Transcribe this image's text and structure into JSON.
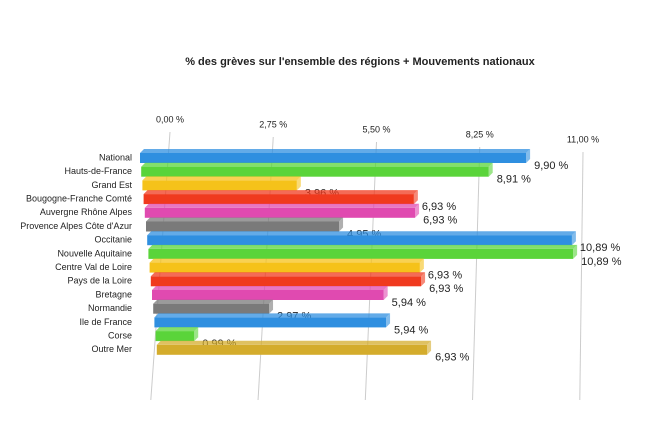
{
  "chart_data": {
    "type": "bar",
    "orientation": "horizontal",
    "title": "% des grèves sur l'ensemble des régions + Mouvements nationaux",
    "categories": [
      "National",
      "Hauts-de-France",
      "Grand Est",
      "Bougogne-Franche Comté",
      "Auvergne Rhône Alpes",
      "Provence Alpes Côte d'Azur",
      "Occitanie",
      "Nouvelle Aquitaine",
      "Centre Val de Loire",
      "Pays de la Loire",
      "Bretagne",
      "Normandie",
      "Ile de France",
      "Corse",
      "Outre Mer"
    ],
    "values": [
      9.9,
      8.91,
      3.96,
      6.93,
      6.93,
      4.95,
      10.89,
      10.89,
      6.93,
      6.93,
      5.94,
      2.97,
      5.94,
      0.99,
      6.93
    ],
    "value_labels": [
      "9,90 %",
      "8,91 %",
      "3,96 %",
      "6,93 %",
      "6,93 %",
      "4,95 %",
      "10,89 %",
      "10,89 %",
      "6,93 %",
      "6,93 %",
      "5,94 %",
      "2,97 %",
      "5,94 %",
      "0,99 %",
      "6,93 %"
    ],
    "colors": [
      "#2f8fe0",
      "#5ad43a",
      "#f5c21a",
      "#f03a1e",
      "#e04ab0",
      "#7a7a7a",
      "#2f8fe0",
      "#5ad43a",
      "#f5c21a",
      "#f03a1e",
      "#e04ab0",
      "#7a7a7a",
      "#2f8fe0",
      "#5ad43a",
      "#d4ac2c"
    ],
    "xlim": [
      0,
      11
    ],
    "xticks": [
      {
        "value": 0,
        "label": "0,00 %"
      },
      {
        "value": 2.75,
        "label": "2,75 %"
      },
      {
        "value": 5.5,
        "label": "5,50 %"
      },
      {
        "value": 8.25,
        "label": "8,25 %"
      },
      {
        "value": 11,
        "label": "11,00 %"
      }
    ],
    "grid": true
  }
}
